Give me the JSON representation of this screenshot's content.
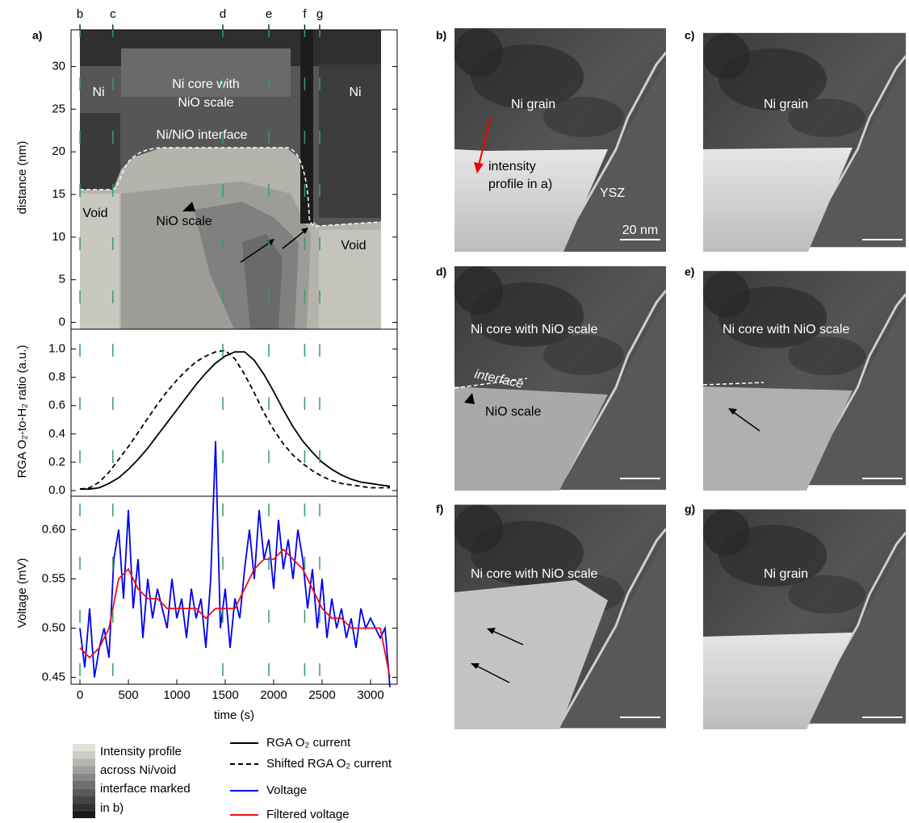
{
  "chart_data": [
    {
      "type": "contour",
      "panel_label": "a)",
      "ylabel": "distance (nm)",
      "ylim": [
        -0.8,
        34.3
      ],
      "yticks": [
        0,
        5,
        10,
        15,
        20,
        25,
        30
      ],
      "xlim": [
        -92,
        3275
      ],
      "markers": {
        "labels": [
          "b",
          "c",
          "d",
          "e",
          "f",
          "g"
        ],
        "times": [
          0,
          340,
          1475,
          1950,
          2320,
          2475
        ],
        "color": "#3a9a6a"
      },
      "annotations": [
        "Ni",
        "Ni core with",
        "NiO scale",
        "Ni/NiO interface",
        "Void",
        "NiO scale",
        "Ni",
        "Void"
      ]
    },
    {
      "type": "line",
      "ylabel": "RGA O₂-to-H₂ ratio (a.u.)",
      "xlim": [
        -92,
        3275
      ],
      "ylim": [
        -0.04,
        1.14
      ],
      "yticks": [
        {
          "value": 0,
          "label": "0.0"
        },
        {
          "value": 0.2,
          "label": "0.2"
        },
        {
          "value": 0.4,
          "label": "0.4"
        },
        {
          "value": 0.6,
          "label": "0.6"
        },
        {
          "value": 0.8,
          "label": "0.8"
        },
        {
          "value": 1,
          "label": "1.0"
        }
      ],
      "series": [
        {
          "name": "RGA O₂ current",
          "color": "#000000",
          "dash": false,
          "x": [
            0,
            100,
            200,
            300,
            400,
            500,
            600,
            700,
            800,
            900,
            1000,
            1100,
            1200,
            1300,
            1400,
            1500,
            1600,
            1700,
            1800,
            1900,
            2000,
            2100,
            2200,
            2300,
            2400,
            2500,
            2600,
            2700,
            2800,
            2900,
            3000,
            3100,
            3200
          ],
          "values": [
            0.01,
            0.01,
            0.02,
            0.05,
            0.09,
            0.15,
            0.22,
            0.3,
            0.39,
            0.48,
            0.57,
            0.66,
            0.75,
            0.83,
            0.9,
            0.95,
            0.98,
            0.98,
            0.92,
            0.82,
            0.7,
            0.57,
            0.45,
            0.35,
            0.27,
            0.2,
            0.15,
            0.11,
            0.08,
            0.06,
            0.05,
            0.04,
            0.03
          ]
        },
        {
          "name": "Shifted RGA O₂ current",
          "color": "#000000",
          "dash": true,
          "x": [
            0,
            100,
            200,
            300,
            400,
            500,
            600,
            700,
            800,
            900,
            1000,
            1100,
            1200,
            1300,
            1400,
            1500,
            1600,
            1700,
            1800,
            1900,
            2000,
            2100,
            2200,
            2300,
            2400,
            2500,
            2600,
            2700,
            2800,
            2900,
            3000,
            3100,
            3200
          ],
          "values": [
            0.01,
            0.02,
            0.06,
            0.13,
            0.22,
            0.31,
            0.41,
            0.51,
            0.61,
            0.7,
            0.78,
            0.85,
            0.91,
            0.95,
            0.98,
            0.99,
            0.93,
            0.82,
            0.69,
            0.55,
            0.43,
            0.33,
            0.25,
            0.19,
            0.14,
            0.1,
            0.07,
            0.05,
            0.04,
            0.03,
            0.02,
            0.02,
            0.02
          ]
        }
      ]
    },
    {
      "type": "line",
      "ylabel": "Voltage (mV)",
      "xlabel": "time (s)",
      "xlim": [
        -92,
        3275
      ],
      "xticks": [
        0,
        500,
        1000,
        1500,
        2000,
        2500,
        3000
      ],
      "ylim": [
        0.443,
        0.634
      ],
      "yticks": [
        {
          "value": 0.45,
          "label": "0.45"
        },
        {
          "value": 0.5,
          "label": "0.50"
        },
        {
          "value": 0.55,
          "label": "0.55"
        },
        {
          "value": 0.6,
          "label": "0.60"
        }
      ],
      "series": [
        {
          "name": "Voltage",
          "color": "#0000ee",
          "dash": false,
          "x": [
            0,
            50,
            100,
            150,
            200,
            250,
            300,
            350,
            400,
            450,
            500,
            550,
            600,
            650,
            700,
            750,
            800,
            850,
            900,
            950,
            1000,
            1050,
            1100,
            1150,
            1200,
            1250,
            1300,
            1350,
            1400,
            1450,
            1500,
            1550,
            1600,
            1650,
            1700,
            1750,
            1800,
            1850,
            1900,
            1950,
            2000,
            2050,
            2100,
            2150,
            2200,
            2250,
            2300,
            2350,
            2400,
            2450,
            2500,
            2550,
            2600,
            2650,
            2700,
            2750,
            2800,
            2850,
            2900,
            2950,
            3000,
            3050,
            3100,
            3150,
            3200
          ],
          "values": [
            0.5,
            0.46,
            0.52,
            0.45,
            0.48,
            0.5,
            0.47,
            0.57,
            0.6,
            0.53,
            0.62,
            0.52,
            0.57,
            0.49,
            0.55,
            0.51,
            0.54,
            0.52,
            0.5,
            0.55,
            0.51,
            0.53,
            0.49,
            0.54,
            0.51,
            0.53,
            0.48,
            0.55,
            0.69,
            0.5,
            0.54,
            0.48,
            0.53,
            0.51,
            0.56,
            0.6,
            0.55,
            0.62,
            0.57,
            0.59,
            0.54,
            0.61,
            0.56,
            0.59,
            0.55,
            0.6,
            0.57,
            0.52,
            0.56,
            0.5,
            0.55,
            0.49,
            0.53,
            0.5,
            0.52,
            0.49,
            0.51,
            0.48,
            0.52,
            0.5,
            0.51,
            0.5,
            0.49,
            0.5,
            0.44
          ]
        },
        {
          "name": "Filtered voltage",
          "color": "#ee1111",
          "dash": false,
          "x": [
            0,
            100,
            200,
            300,
            400,
            500,
            600,
            700,
            800,
            900,
            1000,
            1100,
            1200,
            1300,
            1400,
            1500,
            1600,
            1700,
            1800,
            1900,
            2000,
            2100,
            2200,
            2300,
            2400,
            2500,
            2600,
            2700,
            2800,
            2900,
            3000,
            3100,
            3200
          ],
          "values": [
            0.48,
            0.47,
            0.48,
            0.5,
            0.55,
            0.56,
            0.54,
            0.53,
            0.53,
            0.52,
            0.52,
            0.52,
            0.52,
            0.51,
            0.52,
            0.52,
            0.52,
            0.54,
            0.56,
            0.57,
            0.57,
            0.58,
            0.57,
            0.56,
            0.54,
            0.52,
            0.51,
            0.51,
            0.5,
            0.5,
            0.5,
            0.5,
            0.45
          ]
        }
      ]
    }
  ],
  "colorbar_label": [
    "Intensity profile",
    "across Ni/void",
    "interface marked",
    "in b)"
  ],
  "images": [
    {
      "label": "b)",
      "texts": [
        "Ni grain",
        "intensity",
        "profile in a)",
        "YSZ",
        "20 nm"
      ]
    },
    {
      "label": "c)",
      "texts": [
        "Ni grain"
      ]
    },
    {
      "label": "d)",
      "texts": [
        "Ni core with NiO scale",
        "interface",
        "NiO scale"
      ]
    },
    {
      "label": "e)",
      "texts": [
        "Ni core with NiO scale"
      ]
    },
    {
      "label": "f)",
      "texts": [
        "Ni core with NiO scale"
      ]
    },
    {
      "label": "g)",
      "texts": [
        "Ni grain"
      ]
    }
  ]
}
